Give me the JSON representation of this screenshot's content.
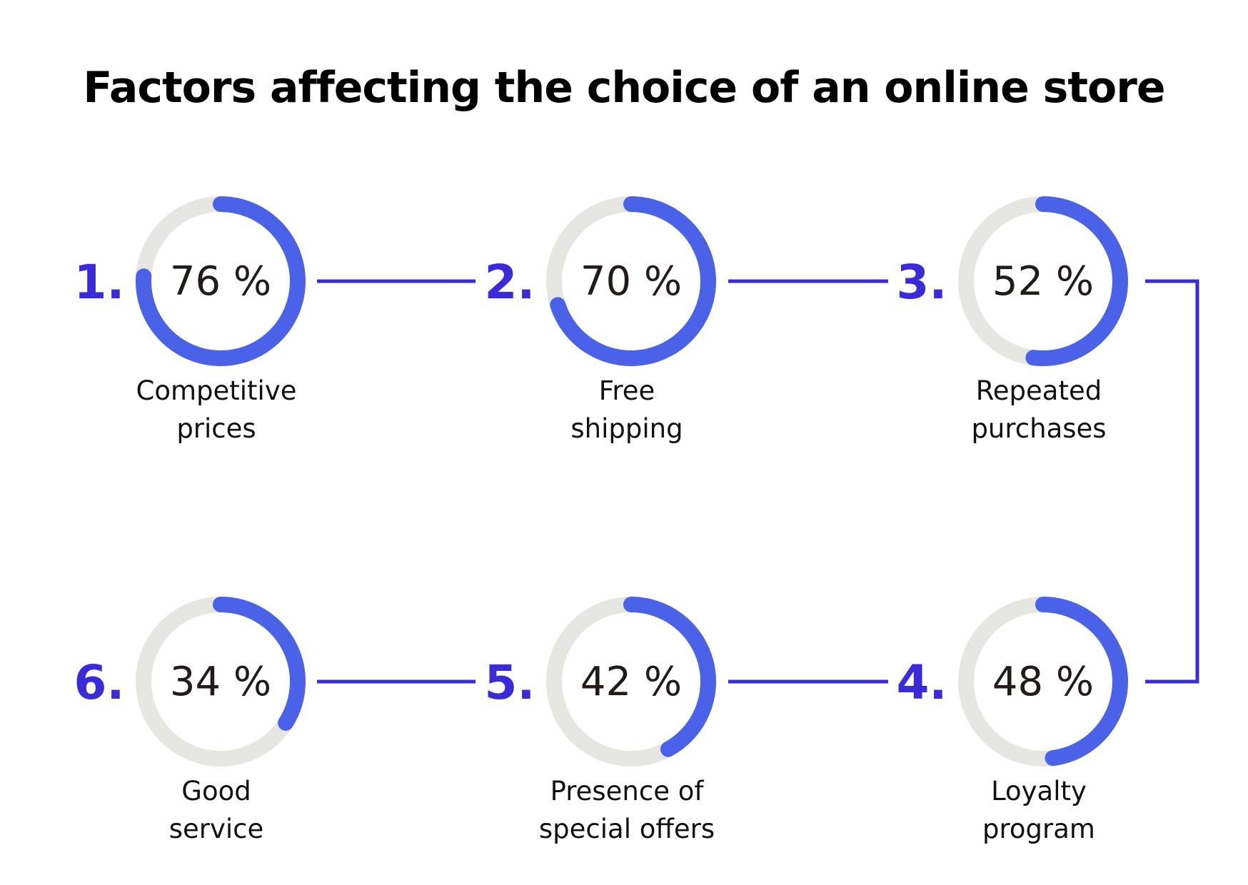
{
  "title": "Factors affecting the choice of an online store",
  "colors": {
    "accent": "#4a62e8",
    "track": "#e6e6e3",
    "number": "#3a2bd8",
    "connector": "#3a2bd8"
  },
  "chart_data": {
    "type": "pie",
    "title": "Factors affecting the choice of an online store",
    "unit": "%",
    "items": [
      {
        "rank": "1.",
        "value": 76,
        "label_lines": [
          "Competitive",
          "prices"
        ]
      },
      {
        "rank": "2.",
        "value": 70,
        "label_lines": [
          "Free",
          "shipping"
        ]
      },
      {
        "rank": "3.",
        "value": 52,
        "label_lines": [
          "Repeated",
          "purchases"
        ]
      },
      {
        "rank": "4.",
        "value": 48,
        "label_lines": [
          "Loyalty",
          "program"
        ]
      },
      {
        "rank": "5.",
        "value": 42,
        "label_lines": [
          "Presence of",
          "special offers"
        ]
      },
      {
        "rank": "6.",
        "value": 34,
        "label_lines": [
          "Good",
          "service"
        ]
      }
    ]
  }
}
